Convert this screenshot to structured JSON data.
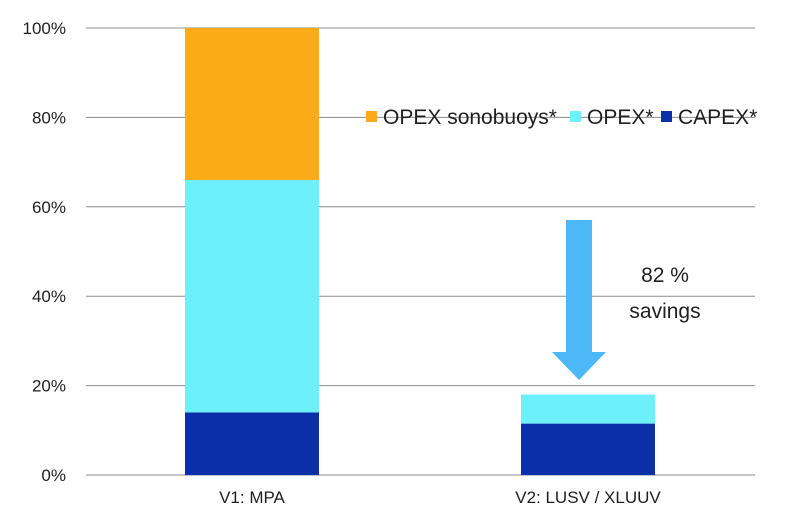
{
  "chart_data": {
    "type": "bar",
    "stacked": true,
    "categories": [
      "V1: MPA",
      "V2: LUSV / XLUUV"
    ],
    "series": [
      {
        "name": "CAPEX*",
        "values": [
          14,
          11.5
        ],
        "color": "#0a2fa8"
      },
      {
        "name": "OPEX*",
        "values": [
          52,
          6.5
        ],
        "color": "#6ef0fb"
      },
      {
        "name": "OPEX sonobuoys*",
        "values": [
          34,
          0
        ],
        "color": "#fbab17"
      }
    ],
    "legend_order": [
      "OPEX sonobuoys*",
      "OPEX*",
      "CAPEX*"
    ],
    "legend_position": "right",
    "ylim": [
      0,
      100
    ],
    "yticks": [
      "0%",
      "20%",
      "40%",
      "60%",
      "80%",
      "100%"
    ],
    "ytick_values": [
      0,
      20,
      40,
      60,
      80,
      100
    ],
    "grid": true,
    "annotation": {
      "line1": "82 %",
      "line2": "savings",
      "arrow_color": "#4db8f7"
    }
  }
}
